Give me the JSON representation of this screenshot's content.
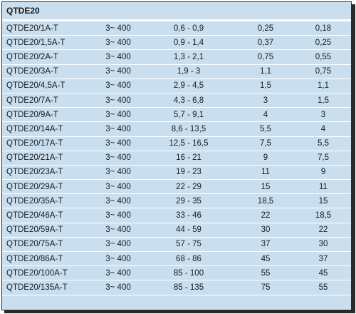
{
  "table": {
    "title": "QTDE20",
    "rows": [
      {
        "model": "QTDE20/1A-T",
        "range": "3~ 400",
        "adjust": "0,6 - 0,9",
        "p1": "0,25",
        "p2": "0,18"
      },
      {
        "model": "QTDE20/1,5A-T",
        "range": "3~ 400",
        "adjust": "0,9 - 1,4",
        "p1": "0,37",
        "p2": "0,25"
      },
      {
        "model": "QTDE20/2A-T",
        "range": "3~ 400",
        "adjust": "1,3 - 2,1",
        "p1": "0,75",
        "p2": "0,55"
      },
      {
        "model": "QTDE20/3A-T",
        "range": "3~ 400",
        "adjust": "1,9 - 3",
        "p1": "1,1",
        "p2": "0,75"
      },
      {
        "model": "QTDE20/4,5A-T",
        "range": "3~ 400",
        "adjust": "2,9 - 4,5",
        "p1": "1,5",
        "p2": "1,1"
      },
      {
        "model": "QTDE20/7A-T",
        "range": "3~ 400",
        "adjust": "4,3 - 6,8",
        "p1": "3",
        "p2": "1,5"
      },
      {
        "model": "QTDE20/9A-T",
        "range": "3~ 400",
        "adjust": "5,7 - 9,1",
        "p1": "4",
        "p2": "3"
      },
      {
        "model": "QTDE20/14A-T",
        "range": "3~ 400",
        "adjust": "8,6 - 13,5",
        "p1": "5,5",
        "p2": "4"
      },
      {
        "model": "QTDE20/17A-T",
        "range": "3~ 400",
        "adjust": "12,5 - 16,5",
        "p1": "7,5",
        "p2": "5,5"
      },
      {
        "model": "QTDE20/21A-T",
        "range": "3~ 400",
        "adjust": "16 - 21",
        "p1": "9",
        "p2": "7,5"
      },
      {
        "model": "QTDE20/23A-T",
        "range": "3~ 400",
        "adjust": "19 - 23",
        "p1": "11",
        "p2": "9"
      },
      {
        "model": "QTDE20/29A-T",
        "range": "3~ 400",
        "adjust": "22 - 29",
        "p1": "15",
        "p2": "11"
      },
      {
        "model": "QTDE20/35A-T",
        "range": "3~ 400",
        "adjust": "29 - 35",
        "p1": "18,5",
        "p2": "15"
      },
      {
        "model": "QTDE20/46A-T",
        "range": "3~ 400",
        "adjust": "33 - 46",
        "p1": "22",
        "p2": "18,5"
      },
      {
        "model": "QTDE20/59A-T",
        "range": "3~ 400",
        "adjust": "44 - 59",
        "p1": "30",
        "p2": "22"
      },
      {
        "model": "QTDE20/75A-T",
        "range": "3~ 400",
        "adjust": "57 - 75",
        "p1": "37",
        "p2": "30"
      },
      {
        "model": "QTDE20/86A-T",
        "range": "3~ 400",
        "adjust": "68 - 86",
        "p1": "45",
        "p2": "37"
      },
      {
        "model": "QTDE20/100A-T",
        "range": "3~ 400",
        "adjust": "85 - 100",
        "p1": "55",
        "p2": "45"
      },
      {
        "model": "QTDE20/135A-T",
        "range": "3~ 400",
        "adjust": "85 - 135",
        "p1": "75",
        "p2": "55"
      }
    ]
  },
  "colors": {
    "row_background": "#c9dfef",
    "separator": "#ffffff",
    "frame": "#2a2a2a"
  }
}
